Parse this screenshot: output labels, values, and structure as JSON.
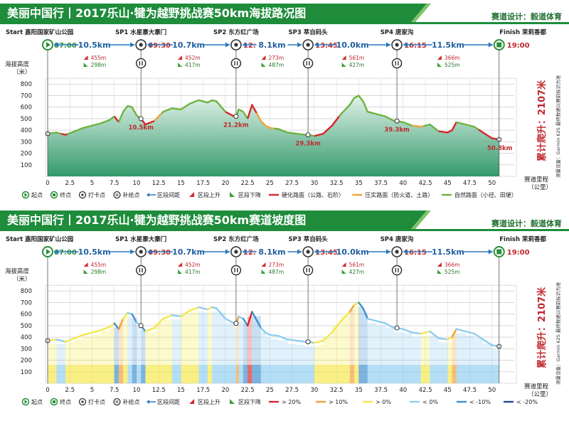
{
  "panel1": {
    "title": "美丽中国行丨2017乐山·犍为越野挑战赛50km海拔路况图",
    "designer": "赛道设计：毅道体育",
    "legend": [
      {
        "icon": "start-icon",
        "label": "起点"
      },
      {
        "icon": "finish-icon",
        "label": "终点"
      },
      {
        "icon": "checkpoint-icon",
        "label": "打卡点"
      },
      {
        "icon": "supply-icon",
        "label": "补给点"
      },
      {
        "icon": "double-arrow-icon",
        "label": "区段间距"
      },
      {
        "icon": "up-flag-icon",
        "label": "区段上升"
      },
      {
        "icon": "down-flag-icon",
        "label": "区段下降"
      },
      {
        "color": "#d7262b",
        "label": "硬化路面（公路、石阶）"
      },
      {
        "color": "#f0a13b",
        "label": "压实路面（防火道、土路）"
      },
      {
        "color": "#6db33f",
        "label": "自然路面（小径、田埂）"
      }
    ]
  },
  "panel2": {
    "title": "美丽中国行丨2017乐山·犍为越野挑战赛50km赛道坡度图",
    "designer": "赛道设计：毅道体育",
    "legend": [
      {
        "icon": "start-icon",
        "label": "起点"
      },
      {
        "icon": "finish-icon",
        "label": "终点"
      },
      {
        "icon": "checkpoint-icon",
        "label": "打卡点"
      },
      {
        "icon": "supply-icon",
        "label": "补给点"
      },
      {
        "icon": "double-arrow-icon",
        "label": "区段间距"
      },
      {
        "icon": "up-flag-icon",
        "label": "区段上升"
      },
      {
        "icon": "down-flag-icon",
        "label": "区段下降"
      },
      {
        "color": "#d7262b",
        "label": "> 20%"
      },
      {
        "color": "#f0a13b",
        "label": "> 10%"
      },
      {
        "color": "#f4e84a",
        "label": "> 0%"
      },
      {
        "color": "#8ecdf0",
        "label": "< 0%"
      },
      {
        "color": "#3e8fd0",
        "label": "< -10%"
      },
      {
        "color": "#1c4a9a",
        "label": "< -20%"
      }
    ]
  },
  "shared": {
    "ylabel": "海拔高度（米）",
    "xlabel": "赛道里程（公里）",
    "total_climb": "累计爬升：2107米",
    "device_note": "测量设备：Garmin 62S 最终数据以赛前标识为准",
    "start": {
      "name": "Start 嘉阳国家矿山公园",
      "time": "07:00"
    },
    "finish": {
      "name": "Finish 茉莉香都",
      "time": "19:00"
    },
    "checkpoints": [
      {
        "name": "SP1 水星寨大寨门",
        "time": "09:30"
      },
      {
        "name": "SP2 东方红广场",
        "time": "12:00"
      },
      {
        "name": "SP3 萃自码头",
        "time": "13:45"
      },
      {
        "name": "SP4 唐家沟",
        "time": "16:15"
      }
    ],
    "segments": [
      {
        "distance": "10.5km",
        "up": "455m",
        "down": "298m"
      },
      {
        "distance": "10.7km",
        "up": "452m",
        "down": "417m"
      },
      {
        "distance": "8.1km",
        "up": "273m",
        "down": "487m"
      },
      {
        "distance": "10.0km",
        "up": "561m",
        "down": "427m"
      },
      {
        "distance": "11.5km",
        "up": "366m",
        "down": "525m"
      }
    ],
    "cp_km_labels": [
      "10.5km",
      "21.2km",
      "29.3km",
      "39.3km",
      "50.8km"
    ]
  },
  "chart_data": [
    {
      "type": "area",
      "title": "美丽中国行丨2017乐山·犍为越野挑战赛50km海拔路况图",
      "xlabel": "赛道里程（公里）",
      "ylabel": "海拔高度（米）",
      "xlim": [
        0,
        52.5
      ],
      "ylim": [
        0,
        900
      ],
      "xticks": [
        0,
        2.5,
        5,
        7.5,
        10,
        12.5,
        15,
        17.5,
        20,
        22.5,
        25,
        27.5,
        30,
        32.5,
        35,
        37.5,
        40,
        42.5,
        45,
        47.5,
        50
      ],
      "yticks": [
        100,
        200,
        300,
        400,
        500,
        600,
        700,
        800
      ],
      "grid": true,
      "x": [
        0,
        1,
        2,
        3,
        4,
        5,
        6,
        7,
        7.5,
        8,
        8.5,
        9,
        9.5,
        10,
        10.5,
        11,
        12,
        13,
        14,
        15,
        16,
        17,
        17.5,
        18,
        18.5,
        19,
        20,
        21,
        21.2,
        21.5,
        22,
        22.5,
        23,
        24,
        24.5,
        25,
        26,
        27,
        28,
        29,
        29.3,
        30,
        30.5,
        31,
        32,
        33,
        34,
        34.5,
        35,
        35.5,
        36,
        37,
        38,
        39,
        39.3,
        40,
        41,
        42,
        43,
        44,
        45,
        45.5,
        46,
        47,
        48,
        49,
        50,
        50.8
      ],
      "y": [
        370,
        380,
        360,
        390,
        420,
        440,
        460,
        490,
        520,
        470,
        560,
        610,
        600,
        530,
        500,
        450,
        480,
        560,
        590,
        580,
        630,
        660,
        650,
        640,
        660,
        650,
        560,
        520,
        520,
        580,
        560,
        500,
        620,
        480,
        440,
        420,
        410,
        380,
        370,
        360,
        360,
        350,
        360,
        370,
        440,
        540,
        620,
        680,
        700,
        650,
        560,
        540,
        520,
        480,
        480,
        470,
        440,
        430,
        450,
        390,
        380,
        400,
        470,
        450,
        430,
        380,
        330,
        320
      ],
      "surface": [
        {
          "from": 0,
          "to": 1.5,
          "type": "natural"
        },
        {
          "from": 1.5,
          "to": 2.2,
          "type": "hard"
        },
        {
          "from": 2.2,
          "to": 7.5,
          "type": "natural"
        },
        {
          "from": 7.5,
          "to": 8,
          "type": "hard"
        },
        {
          "from": 8,
          "to": 10.5,
          "type": "natural"
        },
        {
          "from": 10.5,
          "to": 12,
          "type": "hard"
        },
        {
          "from": 12,
          "to": 12.8,
          "type": "compact"
        },
        {
          "from": 12.8,
          "to": 20,
          "type": "natural"
        },
        {
          "from": 20,
          "to": 21,
          "type": "hard"
        },
        {
          "from": 21,
          "to": 21.2,
          "type": "natural"
        },
        {
          "from": 21.2,
          "to": 22.5,
          "type": "natural"
        },
        {
          "from": 22.5,
          "to": 23.5,
          "type": "hard"
        },
        {
          "from": 23.5,
          "to": 25.5,
          "type": "compact"
        },
        {
          "from": 25.5,
          "to": 30,
          "type": "natural"
        },
        {
          "from": 30,
          "to": 32.8,
          "type": "hard"
        },
        {
          "from": 32.8,
          "to": 41,
          "type": "natural"
        },
        {
          "from": 41,
          "to": 42.3,
          "type": "compact"
        },
        {
          "from": 42.3,
          "to": 44,
          "type": "natural"
        },
        {
          "from": 44,
          "to": 46,
          "type": "hard"
        },
        {
          "from": 46,
          "to": 48.5,
          "type": "natural"
        },
        {
          "from": 48.5,
          "to": 50.8,
          "type": "hard"
        }
      ]
    },
    {
      "type": "area",
      "title": "美丽中国行丨2017乐山·犍为越野挑战赛50km赛道坡度图",
      "xlabel": "赛道里程（公里）",
      "ylabel": "海拔高度（米）",
      "xlim": [
        0,
        52.5
      ],
      "ylim": [
        0,
        900
      ],
      "xticks": [
        0,
        2.5,
        5,
        7.5,
        10,
        12.5,
        15,
        17.5,
        20,
        22.5,
        25,
        27.5,
        30,
        32.5,
        35,
        37.5,
        40,
        42.5,
        45,
        47.5,
        50
      ],
      "yticks": [
        100,
        200,
        300,
        400,
        500,
        600,
        700,
        800
      ],
      "grid": true,
      "x": [
        0,
        1,
        2,
        3,
        4,
        5,
        6,
        7,
        7.5,
        8,
        8.5,
        9,
        9.5,
        10,
        10.5,
        11,
        12,
        13,
        14,
        15,
        16,
        17,
        17.5,
        18,
        18.5,
        19,
        20,
        21,
        21.2,
        21.5,
        22,
        22.5,
        23,
        24,
        24.5,
        25,
        26,
        27,
        28,
        29,
        29.3,
        30,
        30.5,
        31,
        32,
        33,
        34,
        34.5,
        35,
        35.5,
        36,
        37,
        38,
        39,
        39.3,
        40,
        41,
        42,
        43,
        44,
        45,
        45.5,
        46,
        47,
        48,
        49,
        50,
        50.8
      ],
      "y": [
        370,
        380,
        360,
        390,
        420,
        440,
        460,
        490,
        520,
        470,
        560,
        610,
        600,
        530,
        500,
        450,
        480,
        560,
        590,
        580,
        630,
        660,
        650,
        640,
        660,
        650,
        560,
        520,
        520,
        580,
        560,
        500,
        620,
        480,
        440,
        420,
        410,
        380,
        370,
        360,
        360,
        350,
        360,
        370,
        440,
        540,
        620,
        680,
        700,
        650,
        560,
        540,
        520,
        480,
        480,
        470,
        440,
        430,
        450,
        390,
        380,
        400,
        470,
        450,
        430,
        380,
        330,
        320
      ]
    }
  ]
}
